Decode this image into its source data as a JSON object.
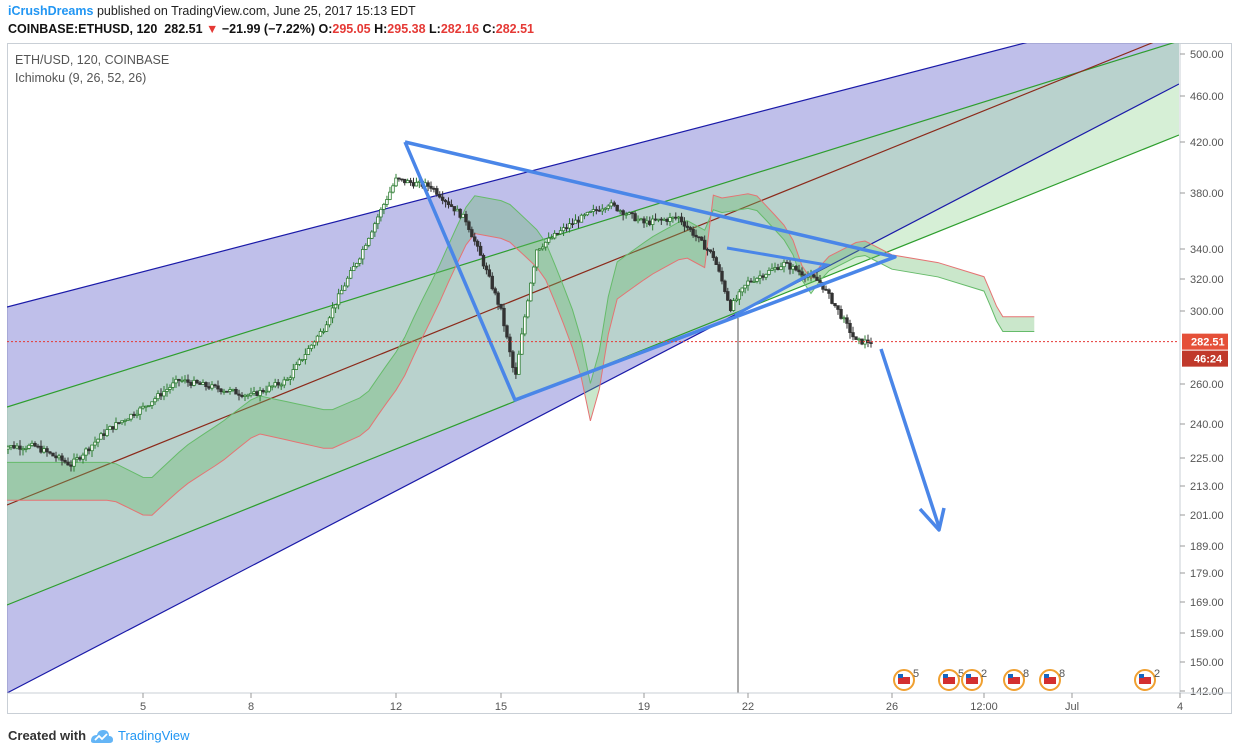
{
  "header": {
    "author": "iCrushDreams",
    "published_text": "published on TradingView.com, June 25, 2017 15:13 EDT",
    "symbol_line": "COINBASE:ETHUSD, 120",
    "last": "282.51",
    "change_arrow": "▼",
    "change": "−21.99 (−7.22%)",
    "open_label": "O:",
    "open": "295.05",
    "high_label": "H:",
    "high": "295.38",
    "low_label": "L:",
    "low": "282.16",
    "close_label": "C:",
    "close": "282.51"
  },
  "legend": {
    "series": "ETH/USD, 120, COINBASE",
    "indicator": "Ichimoku (9, 26, 52, 26)"
  },
  "price_axis": {
    "labels": [
      "500.00",
      "460.00",
      "420.00",
      "380.00",
      "340.00",
      "320.00",
      "300.00",
      "260.00",
      "240.00",
      "225.00",
      "213.00",
      "201.00",
      "189.00",
      "179.00",
      "169.00",
      "159.00",
      "150.00",
      "142.00"
    ]
  },
  "time_axis": {
    "labels": [
      "5",
      "8",
      "12",
      "15",
      "19",
      "22",
      "26",
      "12:00",
      "Jul",
      "4"
    ]
  },
  "price_tags": {
    "last_price": "282.51",
    "countdown": "46:24",
    "last_color": "#e55039",
    "countdown_color": "#c0392b"
  },
  "events": {
    "badges": [
      "5",
      "5",
      "2",
      "8",
      "8",
      "2"
    ]
  },
  "footer": {
    "created_with": "Created with",
    "brand": "TradingView"
  },
  "colors": {
    "channel_outer": "#8a8ad8",
    "channel_inner": "#b4e1b4",
    "channel_line_blue": "#1a1aa8",
    "channel_line_green": "#2e9e2e",
    "median_line": "#8b2a1a",
    "drawing_blue": "#4a86e8",
    "candle_up": "#2e7d32",
    "candle_down": "#333333",
    "cloud_green": "#66bb6a",
    "cloud_red": "#e57373"
  },
  "chart_data": {
    "type": "candlestick",
    "symbol": "COINBASE:ETHUSD",
    "interval": "120",
    "x_ticks": [
      "5",
      "8",
      "12",
      "15",
      "19",
      "22",
      "26",
      "12:00",
      "Jul",
      "4"
    ],
    "y_ticks": [
      500,
      460,
      420,
      380,
      340,
      320,
      300,
      260,
      240,
      225,
      213,
      201,
      189,
      179,
      169,
      159,
      150,
      142
    ],
    "y_scale": "log",
    "last_price": 282.51,
    "close_path": [
      {
        "x": "Jun 2",
        "y": 230
      },
      {
        "x": "Jun 3",
        "y": 222
      },
      {
        "x": "Jun 4",
        "y": 237
      },
      {
        "x": "Jun 5",
        "y": 248
      },
      {
        "x": "Jun 6",
        "y": 262
      },
      {
        "x": "Jun 7",
        "y": 258
      },
      {
        "x": "Jun 8",
        "y": 254
      },
      {
        "x": "Jun 9",
        "y": 262
      },
      {
        "x": "Jun 10",
        "y": 290
      },
      {
        "x": "Jun 11",
        "y": 335
      },
      {
        "x": "Jun 12",
        "y": 390
      },
      {
        "x": "Jun 13",
        "y": 385
      },
      {
        "x": "Jun 14",
        "y": 360
      },
      {
        "x": "Jun 15",
        "y": 300
      },
      {
        "x": "Jun 15.4",
        "y": 262
      },
      {
        "x": "Jun 16",
        "y": 340
      },
      {
        "x": "Jun 17",
        "y": 358
      },
      {
        "x": "Jun 18",
        "y": 372
      },
      {
        "x": "Jun 19",
        "y": 358
      },
      {
        "x": "Jun 20",
        "y": 362
      },
      {
        "x": "Jun 21",
        "y": 335
      },
      {
        "x": "Jun 21.5",
        "y": 302
      },
      {
        "x": "Jun 22",
        "y": 318
      },
      {
        "x": "Jun 23",
        "y": 330
      },
      {
        "x": "Jun 24",
        "y": 318
      },
      {
        "x": "Jun 25",
        "y": 282.51
      }
    ]
  }
}
